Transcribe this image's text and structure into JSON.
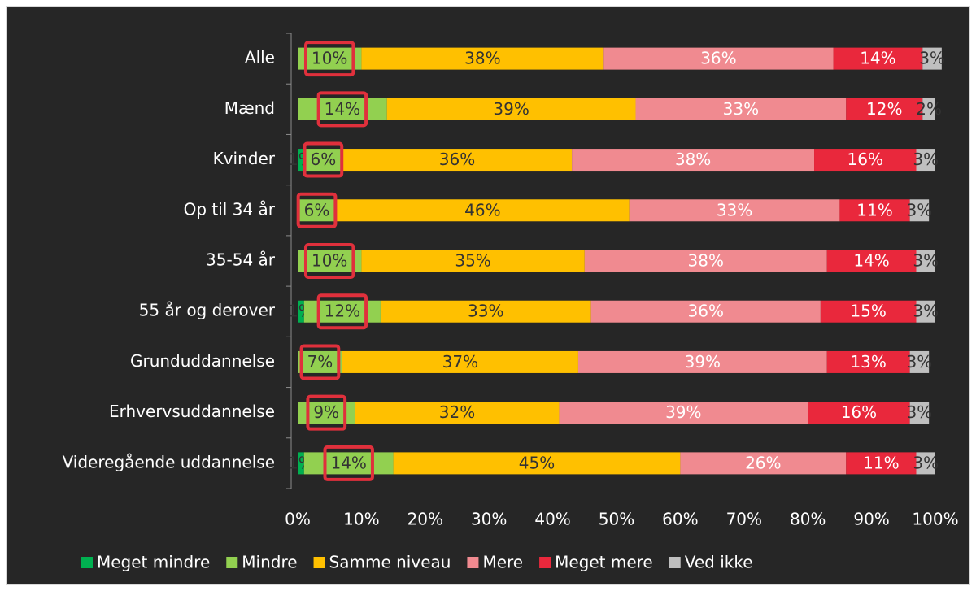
{
  "chart_data": {
    "type": "stacked-bar-horizontal",
    "categories": [
      "Alle",
      "Mænd",
      "Kvinder",
      "Op til 34 år",
      "35-54 år",
      "55 år og derover",
      "Grunduddannelse",
      "Erhvervsuddannelse",
      "Videregående uddannelse"
    ],
    "series": [
      {
        "name": "Meget mindre",
        "color": "#00b050",
        "values": [
          null,
          null,
          1,
          null,
          null,
          1,
          null,
          null,
          1
        ],
        "value_labels": [
          null,
          null,
          "1%",
          null,
          null,
          "1%",
          null,
          null,
          "1%"
        ]
      },
      {
        "name": "Mindre",
        "color": "#92d050",
        "values": [
          10,
          14,
          6,
          6,
          10,
          12,
          7,
          9,
          14
        ],
        "value_labels": [
          "10%",
          "14%",
          "6%",
          "6%",
          "10%",
          "12%",
          "7%",
          "9%",
          "14%"
        ]
      },
      {
        "name": "Samme niveau",
        "color": "#ffc000",
        "values": [
          38,
          39,
          36,
          46,
          35,
          33,
          37,
          32,
          45
        ],
        "value_labels": [
          "38%",
          "39%",
          "36%",
          "46%",
          "35%",
          "33%",
          "37%",
          "32%",
          "45%"
        ]
      },
      {
        "name": "Mere",
        "color": "#f08a90",
        "values": [
          36,
          33,
          38,
          33,
          38,
          36,
          39,
          39,
          26
        ],
        "value_labels": [
          "36%",
          "33%",
          "38%",
          "33%",
          "38%",
          "36%",
          "39%",
          "39%",
          "26%"
        ]
      },
      {
        "name": "Meget mere",
        "color": "#e9283c",
        "values": [
          14,
          12,
          16,
          11,
          14,
          15,
          13,
          16,
          11
        ],
        "value_labels": [
          "14%",
          "12%",
          "16%",
          "11%",
          "14%",
          "15%",
          "13%",
          "16%",
          "11%"
        ]
      },
      {
        "name": "Ved ikke",
        "color": "#bfbfbf",
        "values": [
          3,
          2,
          3,
          3,
          3,
          3,
          3,
          3,
          3
        ],
        "value_labels": [
          "3%",
          "2%",
          "3%",
          "3%",
          "3%",
          "3%",
          "3%",
          "3%",
          "3%"
        ]
      }
    ],
    "xlim": [
      0,
      100
    ],
    "xticks": [
      {
        "value": 0,
        "label": "0%"
      },
      {
        "value": 10,
        "label": "10%"
      },
      {
        "value": 20,
        "label": "20%"
      },
      {
        "value": 30,
        "label": "30%"
      },
      {
        "value": 40,
        "label": "40%"
      },
      {
        "value": 50,
        "label": "50%"
      },
      {
        "value": 60,
        "label": "60%"
      },
      {
        "value": 70,
        "label": "70%"
      },
      {
        "value": 80,
        "label": "80%"
      },
      {
        "value": 90,
        "label": "90%"
      },
      {
        "value": 100,
        "label": "100%"
      }
    ],
    "legend": "bottom"
  }
}
